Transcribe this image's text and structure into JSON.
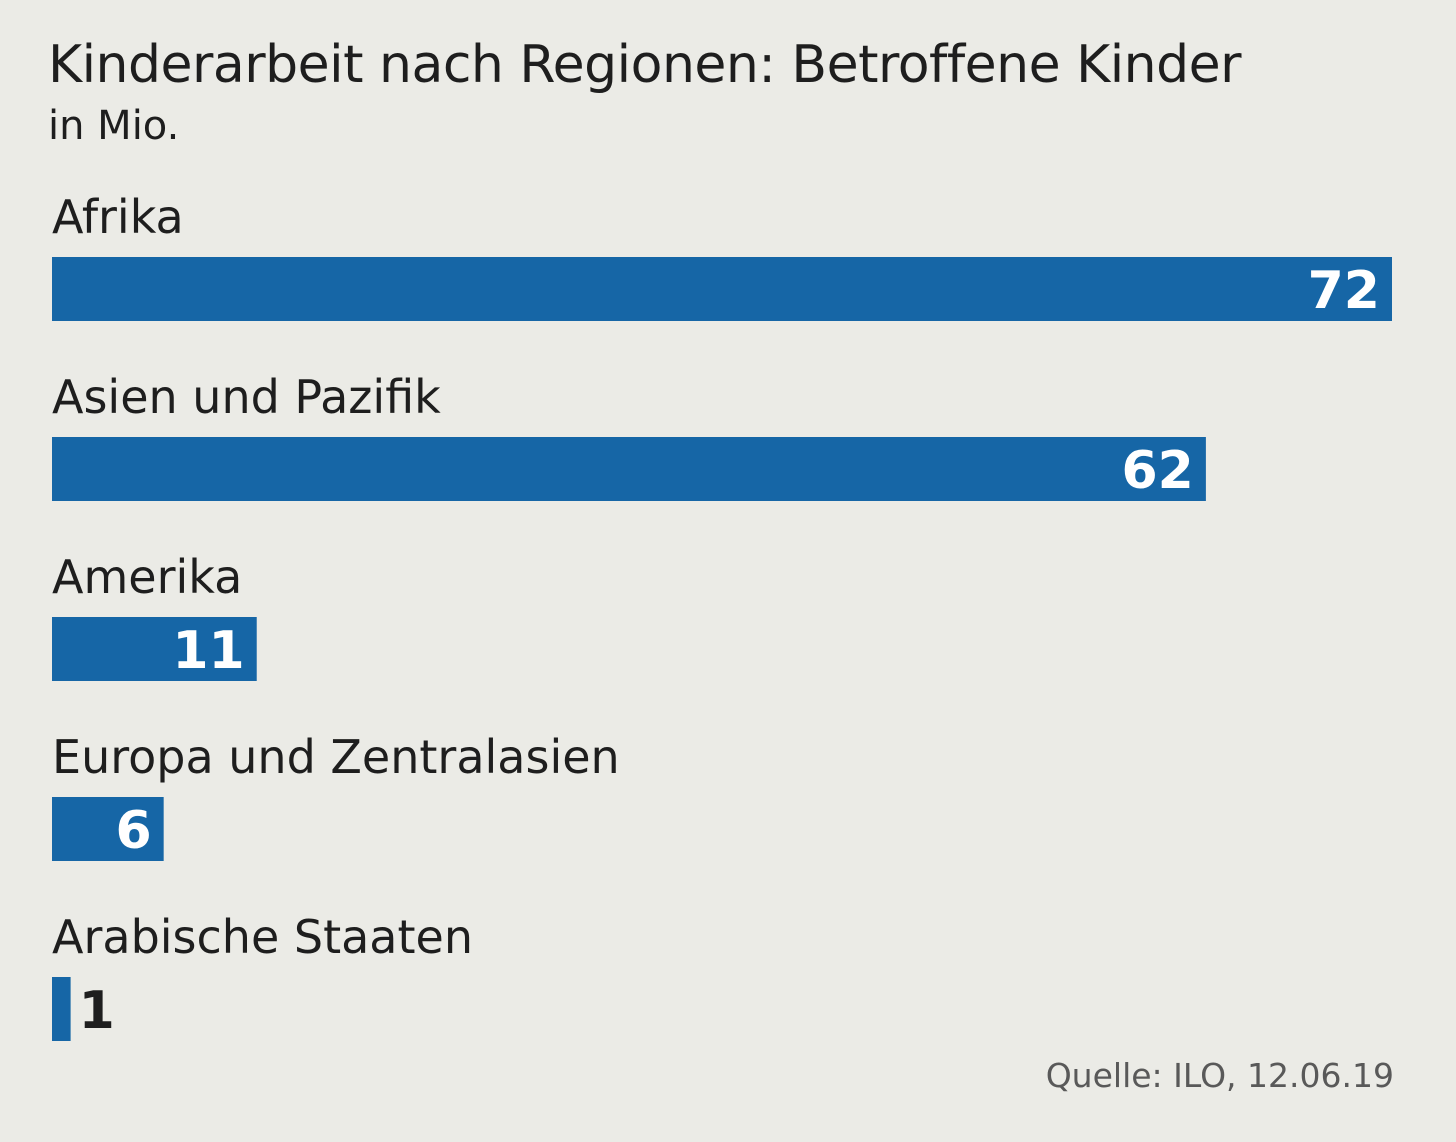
{
  "chart_data": {
    "type": "bar",
    "orientation": "horizontal",
    "title": "Kinderarbeit nach Regionen: Betroffene Kinder",
    "subtitle": "in Mio.",
    "categories": [
      "Afrika",
      "Asien und Pazifik",
      "Amerika",
      "Europa und Zentralasien",
      "Arabische Staaten"
    ],
    "values": [
      72,
      62,
      11,
      6,
      1
    ],
    "data_labels": [
      "72",
      "62",
      "11",
      "6",
      "1"
    ],
    "xlim": [
      0,
      72
    ],
    "grid": false,
    "legend": "none",
    "source": "Quelle: ILO, 12.06.19",
    "colors": {
      "bar": "#1666a6",
      "background": "#ebebe6",
      "text": "#1e1e1e",
      "label_inside": "#ffffff",
      "source_text": "#595959"
    }
  }
}
